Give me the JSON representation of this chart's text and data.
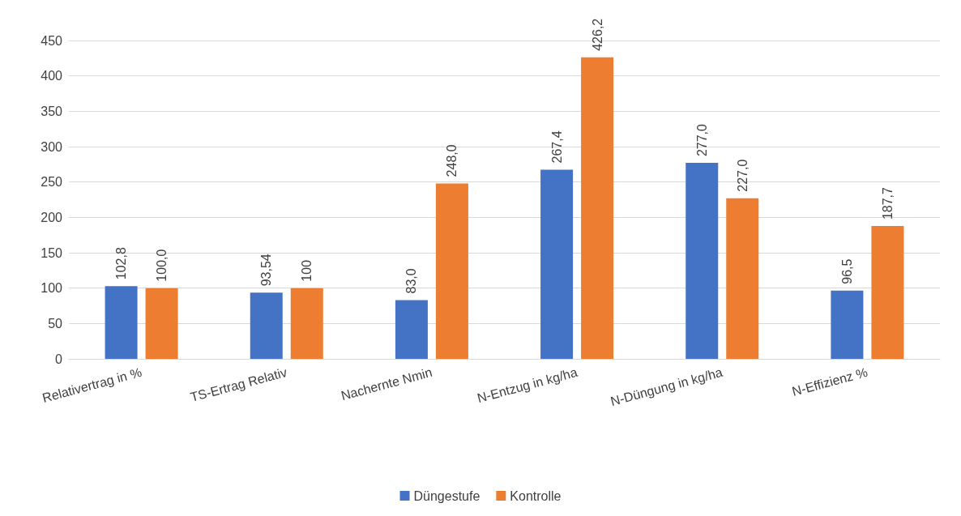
{
  "chart_data": {
    "type": "bar",
    "categories": [
      "Relativertrag in %",
      "TS-Ertrag Relativ",
      "Nachernte Nmin",
      "N-Entzug in kg/ha",
      "N-Düngung in kg/ha",
      "N-Effizienz %"
    ],
    "series": [
      {
        "name": "Düngestufe",
        "color": "#4472c4",
        "values": [
          102.8,
          93.54,
          83.0,
          267.4,
          277.0,
          96.5
        ],
        "value_labels": [
          "102,8",
          "93,54",
          "83,0",
          "267,4",
          "277,0",
          "96,5"
        ]
      },
      {
        "name": "Kontrolle",
        "color": "#ed7d31",
        "values": [
          100.0,
          100,
          248.0,
          426.2,
          227.0,
          187.7
        ],
        "value_labels": [
          "100,0",
          "100",
          "248,0",
          "426,2",
          "227,0",
          "187,7"
        ]
      }
    ],
    "ylim": [
      0,
      450
    ],
    "yticks": [
      0,
      50,
      100,
      150,
      200,
      250,
      300,
      350,
      400,
      450
    ],
    "grid": "y",
    "legend": "bottom"
  }
}
